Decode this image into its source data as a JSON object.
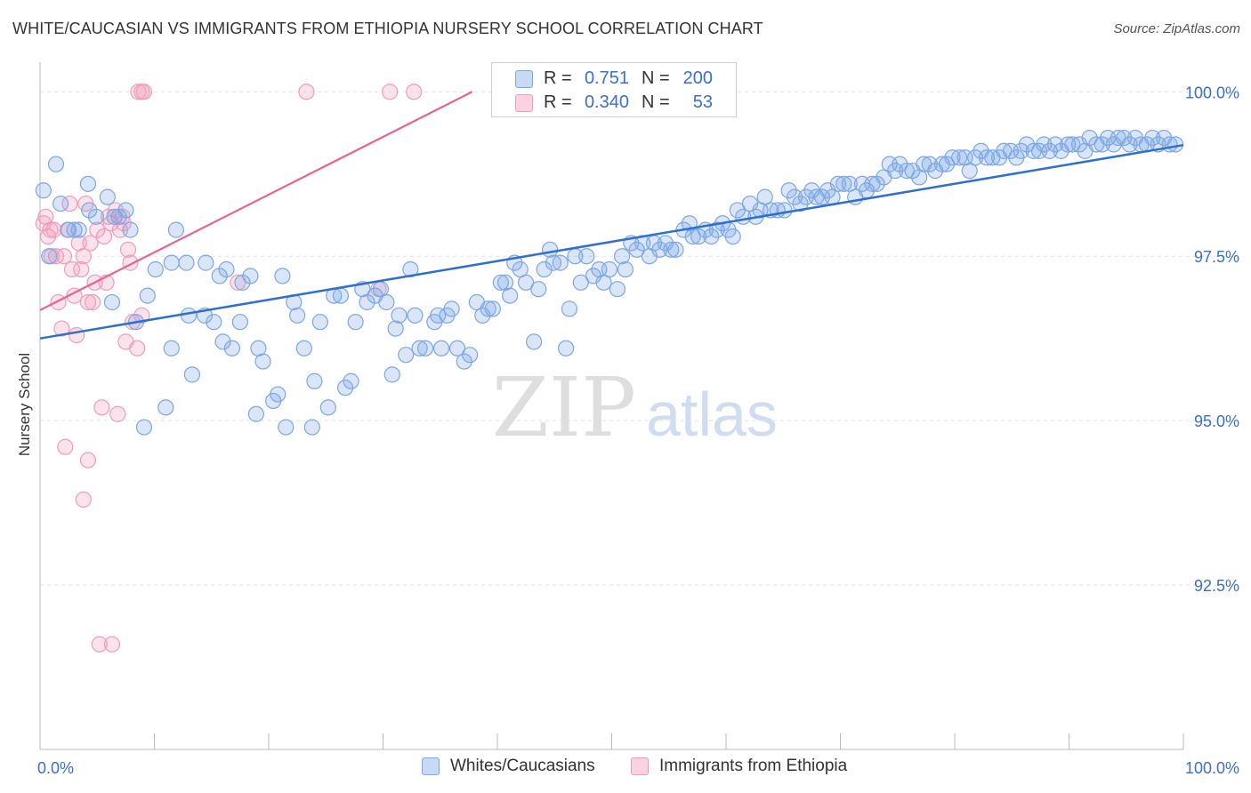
{
  "header": {
    "title": "WHITE/CAUCASIAN VS IMMIGRANTS FROM ETHIOPIA NURSERY SCHOOL CORRELATION CHART",
    "source": "Source: ZipAtlas.com"
  },
  "watermark": {
    "zip": "ZIP",
    "atlas": "atlas"
  },
  "stats_legend": {
    "rows": [
      {
        "r_label": "R =",
        "r_value": "0.751",
        "n_label": "N =",
        "n_value": "200",
        "color": "#7ba7e6"
      },
      {
        "r_label": "R =",
        "r_value": "0.340",
        "n_label": "N =",
        "n_value": "53",
        "color": "#f29bb8"
      }
    ]
  },
  "legend": {
    "items": [
      {
        "label": "Whites/Caucasians",
        "color": "#7ba7e6"
      },
      {
        "label": "Immigrants from Ethiopia",
        "color": "#f29bb8"
      }
    ]
  },
  "colors": {
    "blue": "#7ba7e6",
    "blue_line": "#2f6fd0",
    "pink": "#f29bb8",
    "pink_line": "#e8648f",
    "axis_text": "#3a6fd0"
  },
  "chart_data": {
    "type": "scatter",
    "title": "WHITE/CAUCASIAN VS IMMIGRANTS FROM ETHIOPIA NURSERY SCHOOL CORRELATION CHART",
    "xlabel": "",
    "ylabel": "Nursery School",
    "xlim": [
      0,
      100
    ],
    "ylim": [
      90.0,
      100.45
    ],
    "x_tick_labels": [
      "0.0%",
      "100.0%"
    ],
    "y_ticks": [
      100.0,
      97.5,
      95.0,
      92.5
    ],
    "y_tick_labels": [
      "100.0%",
      "97.5%",
      "95.0%",
      "92.5%"
    ],
    "grid": "horizontal dashed",
    "series": [
      {
        "name": "Whites/Caucasians",
        "color": "#7ba7e6",
        "trend": {
          "x": [
            0,
            100
          ],
          "y": [
            96.25,
            99.19
          ]
        },
        "points": [
          [
            0.3,
            98.5
          ],
          [
            0.8,
            97.5
          ],
          [
            1.4,
            98.9
          ],
          [
            1.8,
            98.3
          ],
          [
            2.5,
            97.9
          ],
          [
            3.0,
            97.9
          ],
          [
            3.4,
            97.9
          ],
          [
            4.2,
            98.6
          ],
          [
            4.3,
            98.2
          ],
          [
            4.9,
            98.1
          ],
          [
            5.9,
            98.4
          ],
          [
            6.3,
            96.8
          ],
          [
            6.5,
            98.1
          ],
          [
            6.9,
            98.1
          ],
          [
            7.5,
            98.2
          ],
          [
            7.9,
            97.9
          ],
          [
            8.4,
            96.5
          ],
          [
            9.1,
            94.9
          ],
          [
            9.4,
            96.9
          ],
          [
            10.1,
            97.3
          ],
          [
            11.0,
            95.2
          ],
          [
            11.5,
            97.4
          ],
          [
            11.5,
            96.1
          ],
          [
            11.9,
            97.9
          ],
          [
            12.8,
            97.4
          ],
          [
            13.0,
            96.6
          ],
          [
            13.3,
            95.7
          ],
          [
            14.4,
            96.6
          ],
          [
            14.5,
            97.4
          ],
          [
            15.2,
            96.5
          ],
          [
            15.7,
            97.2
          ],
          [
            16.0,
            96.2
          ],
          [
            16.3,
            97.3
          ],
          [
            16.8,
            96.1
          ],
          [
            17.5,
            96.5
          ],
          [
            17.7,
            97.1
          ],
          [
            18.4,
            97.2
          ],
          [
            18.9,
            95.1
          ],
          [
            19.1,
            96.1
          ],
          [
            19.5,
            95.9
          ],
          [
            20.4,
            95.3
          ],
          [
            20.8,
            95.4
          ],
          [
            21.2,
            97.2
          ],
          [
            21.5,
            94.9
          ],
          [
            22.2,
            96.8
          ],
          [
            22.5,
            96.6
          ],
          [
            23.1,
            96.1
          ],
          [
            23.8,
            94.9
          ],
          [
            24.0,
            95.6
          ],
          [
            24.5,
            96.5
          ],
          [
            25.2,
            95.2
          ],
          [
            25.7,
            96.9
          ],
          [
            26.3,
            96.9
          ],
          [
            26.7,
            95.5
          ],
          [
            27.2,
            95.6
          ],
          [
            27.6,
            96.5
          ],
          [
            28.2,
            97.0
          ],
          [
            28.6,
            96.8
          ],
          [
            29.3,
            96.9
          ],
          [
            29.8,
            97.0
          ],
          [
            30.3,
            96.8
          ],
          [
            30.8,
            95.7
          ],
          [
            31.1,
            96.4
          ],
          [
            31.4,
            96.6
          ],
          [
            32.0,
            96.0
          ],
          [
            32.4,
            97.3
          ],
          [
            32.8,
            96.6
          ],
          [
            33.2,
            96.1
          ],
          [
            33.7,
            96.1
          ],
          [
            34.5,
            96.5
          ],
          [
            34.8,
            96.6
          ],
          [
            35.1,
            96.1
          ],
          [
            35.6,
            96.6
          ],
          [
            36.0,
            96.7
          ],
          [
            36.5,
            96.1
          ],
          [
            37.1,
            95.9
          ],
          [
            37.6,
            96.0
          ],
          [
            38.2,
            96.8
          ],
          [
            38.7,
            96.6
          ],
          [
            39.2,
            96.7
          ],
          [
            39.6,
            96.7
          ],
          [
            40.3,
            97.1
          ],
          [
            40.7,
            97.1
          ],
          [
            41.1,
            96.9
          ],
          [
            41.5,
            97.4
          ],
          [
            42.0,
            97.3
          ],
          [
            42.5,
            97.1
          ],
          [
            43.2,
            96.2
          ],
          [
            43.6,
            97.0
          ],
          [
            44.1,
            97.3
          ],
          [
            44.6,
            97.6
          ],
          [
            44.9,
            97.4
          ],
          [
            45.5,
            97.4
          ],
          [
            46.0,
            96.1
          ],
          [
            46.3,
            96.7
          ],
          [
            46.8,
            97.5
          ],
          [
            47.3,
            97.1
          ],
          [
            47.8,
            97.5
          ],
          [
            48.4,
            97.2
          ],
          [
            48.9,
            97.3
          ],
          [
            49.3,
            97.1
          ],
          [
            49.8,
            97.3
          ],
          [
            50.5,
            97.0
          ],
          [
            50.9,
            97.5
          ],
          [
            51.2,
            97.3
          ],
          [
            51.7,
            97.7
          ],
          [
            52.2,
            97.6
          ],
          [
            52.7,
            97.7
          ],
          [
            53.3,
            97.5
          ],
          [
            53.7,
            97.7
          ],
          [
            54.2,
            97.6
          ],
          [
            54.7,
            97.7
          ],
          [
            55.2,
            97.6
          ],
          [
            55.6,
            97.6
          ],
          [
            56.3,
            97.9
          ],
          [
            56.8,
            98.0
          ],
          [
            57.1,
            97.8
          ],
          [
            57.6,
            97.8
          ],
          [
            58.2,
            97.9
          ],
          [
            58.7,
            97.8
          ],
          [
            59.2,
            97.9
          ],
          [
            59.7,
            98.0
          ],
          [
            60.2,
            97.9
          ],
          [
            60.6,
            97.8
          ],
          [
            61.0,
            98.2
          ],
          [
            61.5,
            98.1
          ],
          [
            62.1,
            98.3
          ],
          [
            62.6,
            98.1
          ],
          [
            63.0,
            98.2
          ],
          [
            63.4,
            98.4
          ],
          [
            63.9,
            98.2
          ],
          [
            64.5,
            98.2
          ],
          [
            65.1,
            98.2
          ],
          [
            65.5,
            98.5
          ],
          [
            66.0,
            98.4
          ],
          [
            66.5,
            98.3
          ],
          [
            67.0,
            98.4
          ],
          [
            67.5,
            98.5
          ],
          [
            67.9,
            98.4
          ],
          [
            68.4,
            98.4
          ],
          [
            68.9,
            98.5
          ],
          [
            69.3,
            98.4
          ],
          [
            69.8,
            98.6
          ],
          [
            70.3,
            98.6
          ],
          [
            70.8,
            98.6
          ],
          [
            71.3,
            98.4
          ],
          [
            71.9,
            98.6
          ],
          [
            72.3,
            98.5
          ],
          [
            72.8,
            98.6
          ],
          [
            73.2,
            98.6
          ],
          [
            73.8,
            98.7
          ],
          [
            74.3,
            98.9
          ],
          [
            74.8,
            98.8
          ],
          [
            75.2,
            98.9
          ],
          [
            75.8,
            98.8
          ],
          [
            76.3,
            98.8
          ],
          [
            76.9,
            98.7
          ],
          [
            77.3,
            98.9
          ],
          [
            77.8,
            98.9
          ],
          [
            78.3,
            98.8
          ],
          [
            78.9,
            98.9
          ],
          [
            79.3,
            98.9
          ],
          [
            79.8,
            99.0
          ],
          [
            80.4,
            99.0
          ],
          [
            80.9,
            99.0
          ],
          [
            81.3,
            98.8
          ],
          [
            81.8,
            99.0
          ],
          [
            82.3,
            99.1
          ],
          [
            82.8,
            99.0
          ],
          [
            83.3,
            99.0
          ],
          [
            83.9,
            99.0
          ],
          [
            84.3,
            99.1
          ],
          [
            84.9,
            99.1
          ],
          [
            85.4,
            99.0
          ],
          [
            85.8,
            99.1
          ],
          [
            86.3,
            99.2
          ],
          [
            86.9,
            99.1
          ],
          [
            87.4,
            99.1
          ],
          [
            87.8,
            99.2
          ],
          [
            88.3,
            99.1
          ],
          [
            88.8,
            99.2
          ],
          [
            89.3,
            99.1
          ],
          [
            89.9,
            99.2
          ],
          [
            90.3,
            99.2
          ],
          [
            90.9,
            99.2
          ],
          [
            91.4,
            99.1
          ],
          [
            91.8,
            99.3
          ],
          [
            92.4,
            99.2
          ],
          [
            92.9,
            99.2
          ],
          [
            93.4,
            99.3
          ],
          [
            93.9,
            99.2
          ],
          [
            94.3,
            99.3
          ],
          [
            94.8,
            99.3
          ],
          [
            95.3,
            99.2
          ],
          [
            95.8,
            99.3
          ],
          [
            96.3,
            99.2
          ],
          [
            96.8,
            99.2
          ],
          [
            97.3,
            99.3
          ],
          [
            97.8,
            99.2
          ],
          [
            98.3,
            99.3
          ],
          [
            98.8,
            99.2
          ],
          [
            99.3,
            99.2
          ]
        ]
      },
      {
        "name": "Immigrants from Ethiopia",
        "color": "#f29bb8",
        "trend": {
          "x": [
            0,
            37.8
          ],
          "y": [
            96.68,
            100.0
          ]
        },
        "points": [
          [
            0.3,
            98.0
          ],
          [
            0.5,
            98.1
          ],
          [
            0.7,
            97.8
          ],
          [
            0.9,
            97.9
          ],
          [
            1.0,
            97.5
          ],
          [
            1.2,
            97.9
          ],
          [
            1.4,
            97.5
          ],
          [
            1.6,
            96.8
          ],
          [
            1.9,
            96.4
          ],
          [
            2.1,
            97.5
          ],
          [
            2.2,
            94.6
          ],
          [
            2.4,
            97.9
          ],
          [
            2.6,
            98.3
          ],
          [
            2.8,
            97.3
          ],
          [
            3.0,
            96.9
          ],
          [
            3.2,
            96.3
          ],
          [
            3.4,
            97.7
          ],
          [
            3.6,
            97.3
          ],
          [
            3.8,
            97.5
          ],
          [
            3.8,
            93.8
          ],
          [
            4.0,
            98.3
          ],
          [
            4.2,
            96.8
          ],
          [
            4.2,
            94.4
          ],
          [
            4.4,
            97.7
          ],
          [
            4.6,
            96.8
          ],
          [
            4.8,
            97.1
          ],
          [
            5.0,
            97.9
          ],
          [
            5.2,
            91.6
          ],
          [
            5.4,
            95.2
          ],
          [
            5.6,
            97.8
          ],
          [
            5.8,
            97.1
          ],
          [
            6.0,
            98.1
          ],
          [
            6.2,
            98.0
          ],
          [
            6.3,
            91.6
          ],
          [
            6.6,
            98.2
          ],
          [
            6.8,
            95.1
          ],
          [
            7.0,
            97.9
          ],
          [
            7.2,
            98.1
          ],
          [
            7.3,
            98.0
          ],
          [
            7.5,
            96.2
          ],
          [
            7.7,
            97.6
          ],
          [
            7.9,
            97.4
          ],
          [
            8.1,
            96.5
          ],
          [
            8.5,
            96.1
          ],
          [
            8.9,
            96.6
          ],
          [
            8.6,
            100.0
          ],
          [
            8.9,
            100.0
          ],
          [
            9.1,
            100.0
          ],
          [
            17.3,
            97.1
          ],
          [
            23.3,
            100.0
          ],
          [
            29.6,
            97.0
          ],
          [
            30.6,
            100.0
          ],
          [
            32.7,
            100.0
          ]
        ]
      }
    ]
  }
}
